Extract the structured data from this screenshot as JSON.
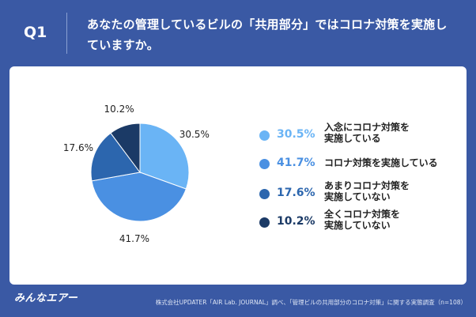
{
  "header": {
    "q_label": "Q1",
    "question": "あなたの管理しているビルの「共用部分」ではコロナ対策を実施していますか。"
  },
  "chart_data": {
    "type": "pie",
    "title": "",
    "slices": [
      {
        "label": "入念にコロナ対策を実施している",
        "value": 30.5,
        "display": "30.5%",
        "color": "#6ab4f5"
      },
      {
        "label": "コロナ対策を実施している",
        "value": 41.7,
        "display": "41.7%",
        "color": "#4a90e2"
      },
      {
        "label": "あまりコロナ対策を実施していない",
        "value": 17.6,
        "display": "17.6%",
        "color": "#2c66ae"
      },
      {
        "label": "全くコロナ対策を実施していない",
        "value": 10.2,
        "display": "10.2%",
        "color": "#1b3a66"
      }
    ],
    "legend_position": "right"
  },
  "legend": [
    {
      "pct": "30.5%",
      "line1": "入念にコロナ対策を",
      "line2": "実施している"
    },
    {
      "pct": "41.7%",
      "line1": "コロナ対策を実施している",
      "line2": ""
    },
    {
      "pct": "17.6%",
      "line1": "あまりコロナ対策を",
      "line2": "実施していない"
    },
    {
      "pct": "10.2%",
      "line1": "全くコロナ対策を",
      "line2": "実施していない"
    }
  ],
  "footer": {
    "logo": "みんなエアー",
    "source": "株式会社UPDATER「AIR Lab. JOURNAL」調べ、「管理ビルの共用部分のコロナ対策」に関する実態調査（n=108）"
  }
}
